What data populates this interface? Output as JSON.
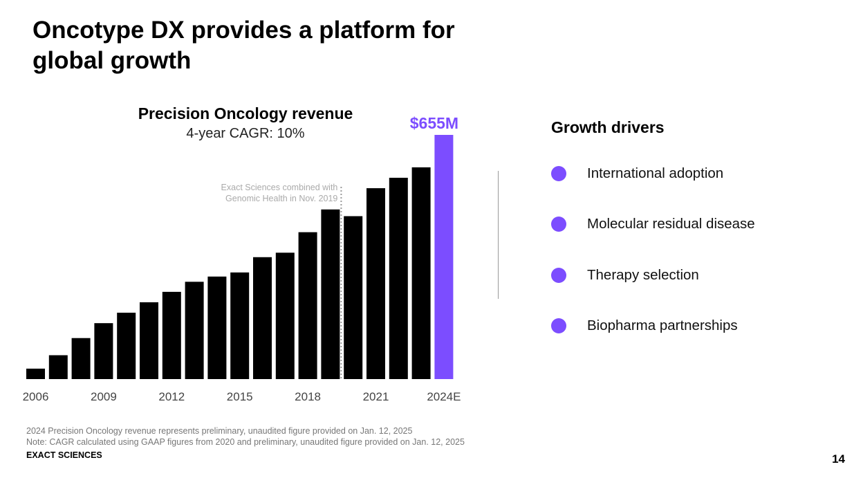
{
  "slide": {
    "title": "Oncotype DX provides a platform for global growth",
    "page_number": "14",
    "brand": "EXACT SCIENCES"
  },
  "chart_data": {
    "type": "bar",
    "title": "Precision Oncology revenue",
    "subtitle": "4-year CAGR: 10%",
    "categories": [
      "2006",
      "2007",
      "2008",
      "2009",
      "2010",
      "2011",
      "2012",
      "2013",
      "2014",
      "2015",
      "2016",
      "2017",
      "2018",
      "2019",
      "2020",
      "2021",
      "2022",
      "2023",
      "2024E"
    ],
    "x_tick_labels": [
      "2006",
      "2009",
      "2012",
      "2015",
      "2018",
      "2021",
      "2024E"
    ],
    "values": [
      28,
      64,
      110,
      150,
      178,
      206,
      234,
      261,
      275,
      286,
      327,
      339,
      394,
      455,
      437,
      512,
      540,
      568,
      655
    ],
    "value_labels": {
      "2024E": "$655M"
    },
    "ylim": [
      0,
      680
    ],
    "colors": {
      "bar": "#000000",
      "highlight": "#7c4dff"
    },
    "highlight_category": "2024E",
    "annotation": {
      "text": [
        "Exact Sciences combined with",
        "Genomic Health in Nov. 2019"
      ],
      "after_category": "2019"
    },
    "grid": false,
    "legend": "none"
  },
  "growth_drivers": {
    "heading": "Growth drivers",
    "items": [
      {
        "label": "International adoption"
      },
      {
        "label": "Molecular residual disease"
      },
      {
        "label": "Therapy selection"
      },
      {
        "label": "Biopharma partnerships"
      }
    ]
  },
  "footnotes": [
    "2024 Precision Oncology revenue represents preliminary, unaudited figure provided on Jan. 12, 2025",
    "Note: CAGR calculated using GAAP figures from 2020 and preliminary, unaudited figure provided on Jan. 12, 2025"
  ]
}
